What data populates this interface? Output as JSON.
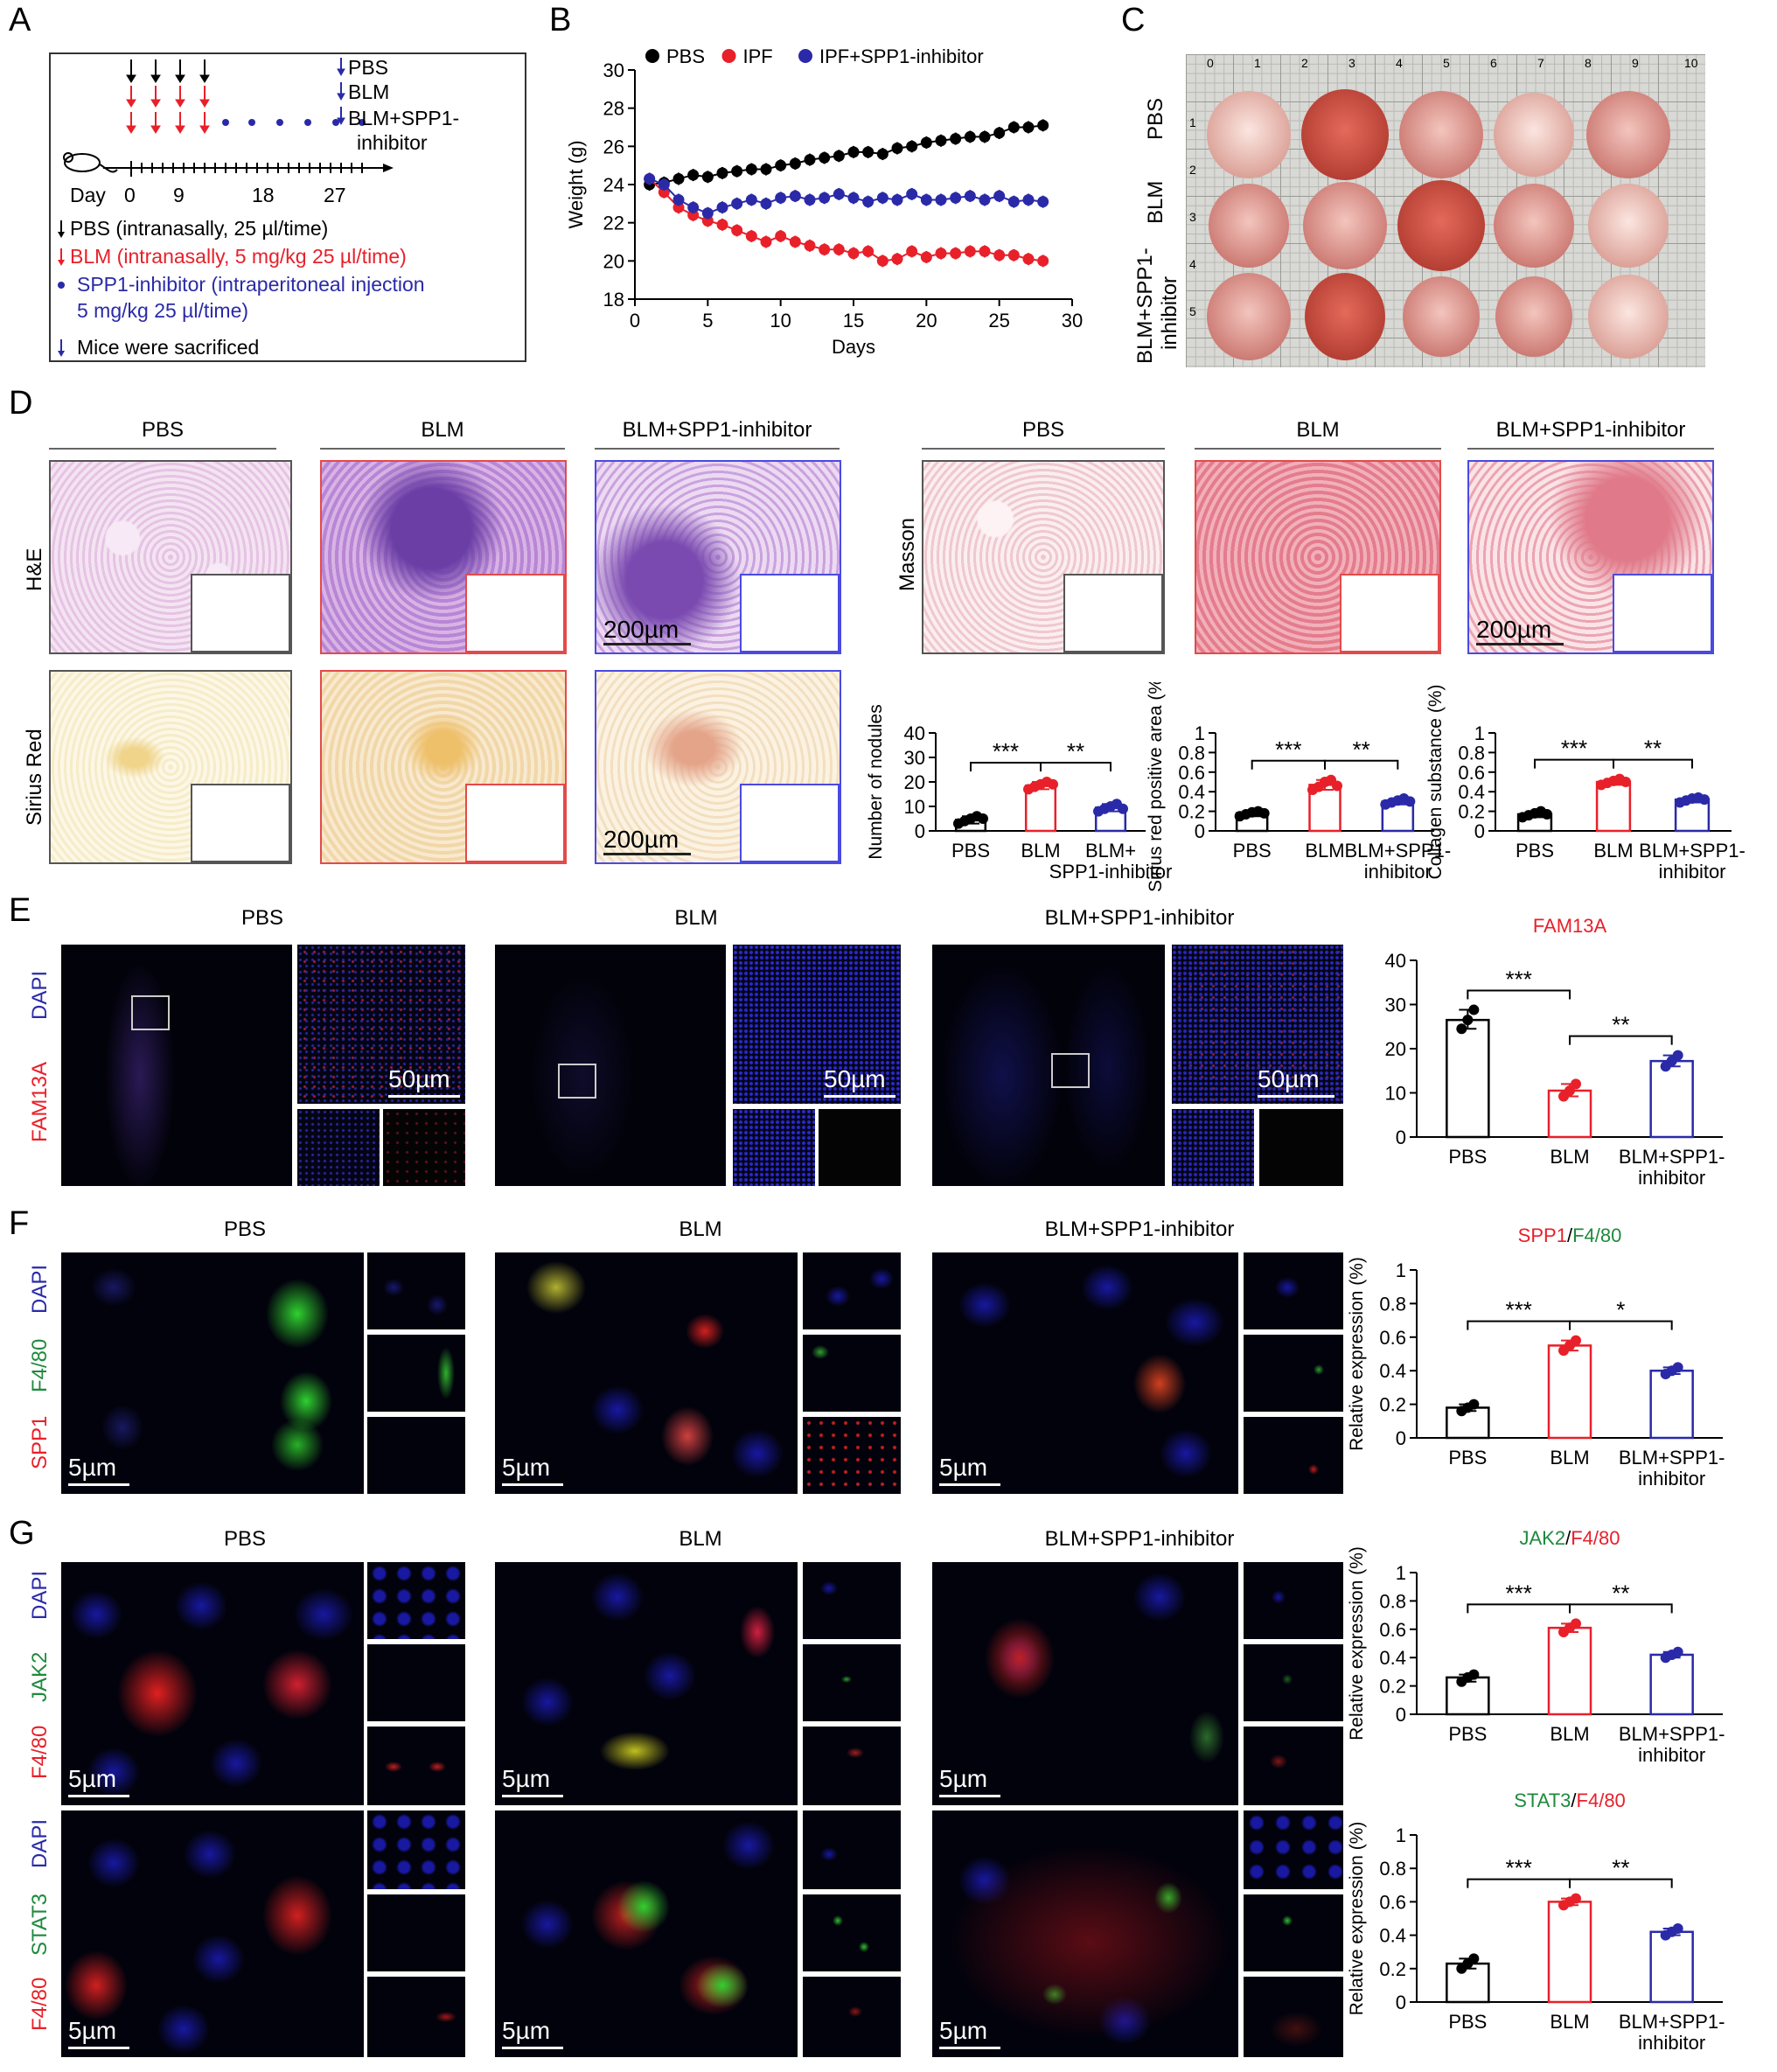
{
  "panels": {
    "A": "A",
    "B": "B",
    "C": "C",
    "D": "D",
    "E": "E",
    "F": "F",
    "G": "G"
  },
  "panelA": {
    "legend_right": [
      "PBS",
      "BLM",
      "BLM+SPP1-",
      "inhibitor"
    ],
    "day_label": "Day",
    "day_ticks": [
      "0",
      "9",
      "18",
      "27"
    ],
    "notes": [
      "PBS (intranasally, 25 µl/time)",
      "BLM (intranasally, 5 mg/kg 25 µl/time)",
      "SPP1-inhibitor (intraperitoneal injection",
      "5 mg/kg 25 µl/time)",
      "Mice were sacrificed"
    ],
    "colors": {
      "pbs": "#000000",
      "blm": "#e8202a",
      "inh": "#2a2aa8"
    }
  },
  "panelC": {
    "row_labels": [
      "PBS",
      "BLM",
      "BLM+SPP1-",
      "inhibitor"
    ],
    "ruler_numbers": [
      "0",
      "1",
      "2",
      "3",
      "4",
      "5",
      "6",
      "7",
      "8",
      "9",
      "10"
    ],
    "side_numbers": [
      "1",
      "2",
      "3",
      "4",
      "5"
    ]
  },
  "panelD": {
    "headers": [
      "PBS",
      "BLM",
      "BLM+SPP1-inhibitor",
      "PBS",
      "BLM",
      "BLM+SPP1-inhibitor"
    ],
    "row_labels": [
      "H&E",
      "Sirius Red",
      "Masson"
    ],
    "scale": "200µm"
  },
  "panelE": {
    "headers": [
      "PBS",
      "BLM",
      "BLM+SPP1-inhibitor"
    ],
    "stain_labels": [
      "DAPI",
      "FAM13A"
    ],
    "scale": "50µm"
  },
  "panelF": {
    "headers": [
      "PBS",
      "BLM",
      "BLM+SPP1-inhibitor"
    ],
    "stain_labels": [
      "DAPI",
      "F4/80",
      "SPP1"
    ],
    "scale": "5µm"
  },
  "panelG": {
    "headers": [
      "PBS",
      "BLM",
      "BLM+SPP1-inhibitor"
    ],
    "stain_labels_top": [
      "DAPI",
      "JAK2",
      "F4/80"
    ],
    "stain_labels_bottom": [
      "DAPI",
      "STAT3",
      "F4/80"
    ],
    "scale": "5µm"
  },
  "chart_data": [
    {
      "id": "B",
      "type": "line",
      "xlabel": "Days",
      "ylabel": "Weight (g)",
      "xlim": [
        0,
        30
      ],
      "ylim": [
        18,
        30
      ],
      "xticks": [
        0,
        5,
        10,
        15,
        20,
        25,
        30
      ],
      "yticks": [
        18,
        20,
        22,
        24,
        26,
        28,
        30
      ],
      "legend": "top",
      "series": [
        {
          "name": "PBS",
          "color": "#000000",
          "x": [
            1,
            2,
            3,
            4,
            5,
            6,
            7,
            8,
            9,
            10,
            11,
            12,
            13,
            14,
            15,
            16,
            17,
            18,
            19,
            20,
            21,
            22,
            23,
            24,
            25,
            26,
            27,
            28
          ],
          "y": [
            24.0,
            24.1,
            24.3,
            24.5,
            24.4,
            24.6,
            24.7,
            24.8,
            24.8,
            25.0,
            25.1,
            25.3,
            25.4,
            25.5,
            25.7,
            25.7,
            25.6,
            25.9,
            26.0,
            26.2,
            26.3,
            26.4,
            26.5,
            26.5,
            26.7,
            27.0,
            27.0,
            27.1
          ]
        },
        {
          "name": "IPF",
          "color": "#e8202a",
          "x": [
            1,
            2,
            3,
            4,
            5,
            6,
            7,
            8,
            9,
            10,
            11,
            12,
            13,
            14,
            15,
            16,
            17,
            18,
            19,
            20,
            21,
            22,
            23,
            24,
            25,
            26,
            27,
            28
          ],
          "y": [
            24.3,
            23.6,
            22.8,
            22.4,
            22.1,
            21.9,
            21.6,
            21.3,
            21.0,
            21.3,
            21.0,
            20.8,
            20.6,
            20.6,
            20.4,
            20.5,
            20.0,
            20.1,
            20.5,
            20.2,
            20.4,
            20.4,
            20.5,
            20.5,
            20.3,
            20.3,
            20.1,
            20.0
          ]
        },
        {
          "name": "IPF+SPP1-inhibitor",
          "color": "#2a2aa8",
          "x": [
            1,
            2,
            3,
            4,
            5,
            6,
            7,
            8,
            9,
            10,
            11,
            12,
            13,
            14,
            15,
            16,
            17,
            18,
            19,
            20,
            21,
            22,
            23,
            24,
            25,
            26,
            27,
            28
          ],
          "y": [
            24.3,
            24.0,
            23.2,
            22.8,
            22.5,
            22.8,
            23.0,
            23.2,
            23.0,
            23.3,
            23.4,
            23.2,
            23.3,
            23.5,
            23.3,
            23.1,
            23.3,
            23.2,
            23.5,
            23.2,
            23.2,
            23.3,
            23.4,
            23.2,
            23.4,
            23.1,
            23.2,
            23.1
          ]
        }
      ]
    },
    {
      "id": "D-nodules",
      "type": "bar",
      "ylabel": "Number of nodules",
      "ylim": [
        0,
        40
      ],
      "yticks": [
        0,
        10,
        20,
        30,
        40
      ],
      "categories": [
        "PBS",
        "BLM",
        "BLM+\nSPP1-inhibitor"
      ],
      "values": [
        4.5,
        18.5,
        9.5
      ],
      "points": [
        [
          3,
          4,
          5,
          6,
          5
        ],
        [
          17,
          18,
          19,
          20,
          19
        ],
        [
          8,
          9,
          10,
          11,
          9
        ]
      ],
      "sig": [
        [
          "***",
          0,
          1
        ],
        [
          "**",
          1,
          2
        ]
      ]
    },
    {
      "id": "D-sirius",
      "type": "bar",
      "ylabel": "Sirius red positive area (%)",
      "ylim": [
        0,
        1.0
      ],
      "yticks": [
        0,
        0.2,
        0.4,
        0.6,
        0.8,
        1.0
      ],
      "categories": [
        "PBS",
        "BLM",
        "BLM+SPP1-\ninhibitor"
      ],
      "values": [
        0.18,
        0.47,
        0.3
      ],
      "points": [
        [
          0.15,
          0.17,
          0.19,
          0.2,
          0.18
        ],
        [
          0.42,
          0.45,
          0.5,
          0.52,
          0.46
        ],
        [
          0.27,
          0.29,
          0.31,
          0.33,
          0.3
        ]
      ],
      "sig": [
        [
          "***",
          0,
          1
        ],
        [
          "**",
          1,
          2
        ]
      ]
    },
    {
      "id": "D-collagen",
      "type": "bar",
      "ylabel": "Collagen substance (%)",
      "ylim": [
        0,
        1.0
      ],
      "yticks": [
        0,
        0.2,
        0.4,
        0.6,
        0.8,
        1.0
      ],
      "categories": [
        "PBS",
        "BLM",
        "BLM+SPP1-\ninhibitor"
      ],
      "values": [
        0.17,
        0.5,
        0.32
      ],
      "points": [
        [
          0.14,
          0.16,
          0.18,
          0.2,
          0.17
        ],
        [
          0.47,
          0.49,
          0.51,
          0.53,
          0.5
        ],
        [
          0.29,
          0.31,
          0.33,
          0.34,
          0.32
        ]
      ],
      "sig": [
        [
          "***",
          0,
          1
        ],
        [
          "**",
          1,
          2
        ]
      ]
    },
    {
      "id": "E",
      "type": "bar",
      "title": [
        "FAM13A"
      ],
      "title_colors": [
        "#e8202a"
      ],
      "ylabel": "",
      "ylim": [
        0,
        40
      ],
      "yticks": [
        0,
        10,
        20,
        30,
        40
      ],
      "categories": [
        "PBS",
        "BLM",
        "BLM+SPP1-\ninhibitor"
      ],
      "values": [
        26.5,
        10.5,
        17.2
      ],
      "points": [
        [
          24.5,
          26.5,
          28.8
        ],
        [
          9.2,
          10.5,
          12.0
        ],
        [
          16.0,
          17.2,
          18.5
        ]
      ],
      "sig": [
        [
          "***",
          0,
          1
        ],
        [
          "**",
          1,
          2
        ]
      ]
    },
    {
      "id": "F",
      "type": "bar",
      "title": [
        "SPP1",
        "/",
        "F4/80"
      ],
      "title_colors": [
        "#e8202a",
        "#000000",
        "#1e8a3c"
      ],
      "ylabel": "Relative expression (%)",
      "ylim": [
        0,
        1.0
      ],
      "yticks": [
        0,
        0.2,
        0.4,
        0.6,
        0.8,
        1.0
      ],
      "categories": [
        "PBS",
        "BLM",
        "BLM+SPP1-\ninhibitor"
      ],
      "values": [
        0.18,
        0.55,
        0.4
      ],
      "points": [
        [
          0.16,
          0.18,
          0.2
        ],
        [
          0.52,
          0.55,
          0.58
        ],
        [
          0.38,
          0.4,
          0.42
        ]
      ],
      "sig": [
        [
          "***",
          0,
          1
        ],
        [
          "*",
          1,
          2
        ]
      ]
    },
    {
      "id": "G-JAK2",
      "type": "bar",
      "title": [
        "JAK2",
        "/",
        "F4/80"
      ],
      "title_colors": [
        "#1e8a3c",
        "#000000",
        "#e8202a"
      ],
      "ylabel": "Relative expression (%)",
      "ylim": [
        0,
        1.0
      ],
      "yticks": [
        0,
        0.2,
        0.4,
        0.6,
        0.8,
        1.0
      ],
      "categories": [
        "PBS",
        "BLM",
        "BLM+SPP1-\ninhibitor"
      ],
      "values": [
        0.26,
        0.61,
        0.42
      ],
      "points": [
        [
          0.23,
          0.26,
          0.28
        ],
        [
          0.58,
          0.61,
          0.64
        ],
        [
          0.4,
          0.42,
          0.44
        ]
      ],
      "sig": [
        [
          "***",
          0,
          1
        ],
        [
          "**",
          1,
          2
        ]
      ]
    },
    {
      "id": "G-STAT3",
      "type": "bar",
      "title": [
        "STAT3",
        "/",
        "F4/80"
      ],
      "title_colors": [
        "#1e8a3c",
        "#000000",
        "#e8202a"
      ],
      "ylabel": "Relative expression (%)",
      "ylim": [
        0,
        1.0
      ],
      "yticks": [
        0,
        0.2,
        0.4,
        0.6,
        0.8,
        1.0
      ],
      "categories": [
        "PBS",
        "BLM",
        "BLM+SPP1-\ninhibitor"
      ],
      "values": [
        0.23,
        0.6,
        0.42
      ],
      "points": [
        [
          0.2,
          0.23,
          0.26
        ],
        [
          0.58,
          0.6,
          0.62
        ],
        [
          0.4,
          0.42,
          0.44
        ]
      ],
      "sig": [
        [
          "***",
          0,
          1
        ],
        [
          "**",
          1,
          2
        ]
      ]
    }
  ]
}
